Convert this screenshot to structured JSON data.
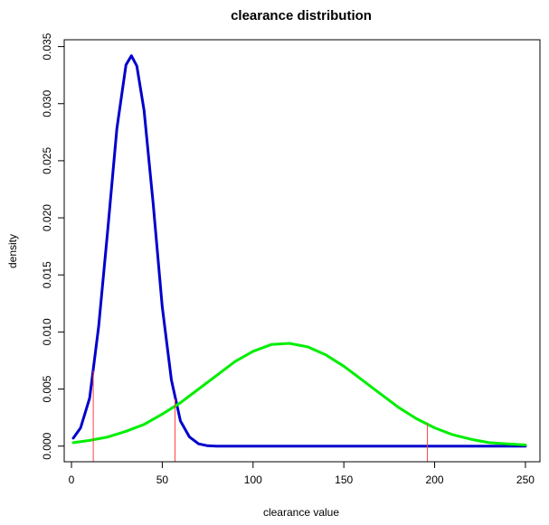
{
  "chart_data": {
    "type": "line",
    "title": "clearance distribution",
    "xlabel": "clearance value",
    "ylabel": "density",
    "xlim": [
      -4,
      258
    ],
    "ylim": [
      -0.00137,
      0.0356
    ],
    "xticks": [
      0,
      50,
      100,
      150,
      200,
      250
    ],
    "yticks": [
      0.0,
      0.005,
      0.01,
      0.015,
      0.02,
      0.025,
      0.03,
      0.035
    ],
    "ytick_labels": [
      "0.000",
      "0.005",
      "0.010",
      "0.015",
      "0.020",
      "0.025",
      "0.030",
      "0.035"
    ],
    "grid": false,
    "series": [
      {
        "color": "#0000cc",
        "x": [
          1,
          5,
          10,
          15,
          20,
          25,
          30,
          33,
          36,
          40,
          45,
          50,
          55,
          60,
          65,
          70,
          75,
          80,
          100,
          150,
          200,
          250
        ],
        "y": [
          0.0007,
          0.0016,
          0.0042,
          0.0105,
          0.019,
          0.0278,
          0.0334,
          0.0342,
          0.0333,
          0.0294,
          0.0212,
          0.0122,
          0.0058,
          0.0022,
          0.0008,
          0.0002,
          3e-05,
          0.0,
          0.0,
          0.0,
          0.0,
          0.0
        ]
      },
      {
        "color": "#00ee00",
        "x": [
          1,
          10,
          20,
          30,
          40,
          50,
          60,
          70,
          80,
          90,
          100,
          110,
          120,
          130,
          140,
          150,
          160,
          170,
          180,
          190,
          200,
          210,
          220,
          230,
          240,
          250
        ],
        "y": [
          0.0003,
          0.0005,
          0.0008,
          0.0013,
          0.0019,
          0.0028,
          0.0038,
          0.005,
          0.0062,
          0.0074,
          0.0083,
          0.0089,
          0.009,
          0.0087,
          0.008,
          0.007,
          0.0058,
          0.0046,
          0.0034,
          0.0024,
          0.0016,
          0.001,
          0.0006,
          0.0003,
          0.0002,
          0.0001
        ]
      }
    ],
    "vlines": [
      {
        "x": 12,
        "y": 0.0066,
        "color": "#ff4444"
      },
      {
        "x": 57,
        "y": 0.0041,
        "color": "#ff4444"
      },
      {
        "x": 196,
        "y": 0.002,
        "color": "#ff4444"
      }
    ]
  }
}
